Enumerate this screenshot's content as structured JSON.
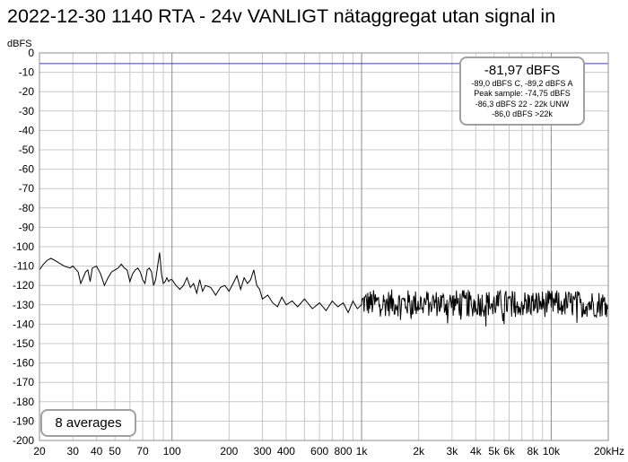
{
  "title": "2022-12-30 1140 RTA - 24v VANLIGT nätaggregat utan signal in",
  "colors": {
    "trace": "#000000",
    "reference_line": "#3a3ac8",
    "grid": "#c8c8c8",
    "grid_major": "#8c8c8c",
    "box_border": "#a0a0a0"
  },
  "readout": {
    "main": "-81,97 dBFS",
    "lines": [
      "-89,0 dBFS C, -89,2 dBFS A",
      "Peak sample: -74,75 dBFS",
      "-86,3 dBFS 22 - 22k UNW",
      "-86,0 dBFS >22k"
    ]
  },
  "averages_label": "8 averages",
  "chart_data": {
    "type": "line",
    "title": "2022-12-30 1140 RTA - 24v VANLIGT nätaggregat utan signal in",
    "ylabel": "dBFS",
    "xlabel": "",
    "x_scale": "log",
    "xlim": [
      20,
      20000
    ],
    "ylim": [
      -200,
      0
    ],
    "grid": true,
    "y_ticks": [
      "0",
      "-10",
      "-20",
      "-30",
      "-40",
      "-50",
      "-60",
      "-70",
      "-80",
      "-90",
      "-100",
      "-110",
      "-120",
      "-130",
      "-140",
      "-150",
      "-160",
      "-170",
      "-180",
      "-190",
      "-200"
    ],
    "x_ticks": [
      {
        "v": 20,
        "label": "20"
      },
      {
        "v": 30,
        "label": "30"
      },
      {
        "v": 40,
        "label": "40"
      },
      {
        "v": 50,
        "label": "50"
      },
      {
        "v": 70,
        "label": "70"
      },
      {
        "v": 100,
        "label": "100"
      },
      {
        "v": 200,
        "label": "200"
      },
      {
        "v": 300,
        "label": "300"
      },
      {
        "v": 400,
        "label": "400"
      },
      {
        "v": 600,
        "label": "600"
      },
      {
        "v": 800,
        "label": "800"
      },
      {
        "v": 1000,
        "label": "1k"
      },
      {
        "v": 2000,
        "label": "2k"
      },
      {
        "v": 3000,
        "label": "3k"
      },
      {
        "v": 4000,
        "label": "4k"
      },
      {
        "v": 5000,
        "label": "5k"
      },
      {
        "v": 6000,
        "label": "6k"
      },
      {
        "v": 8000,
        "label": "8k"
      },
      {
        "v": 10000,
        "label": "10k"
      },
      {
        "v": 20000,
        "label": "20kHz"
      }
    ],
    "reference_level": -5.5,
    "series": [
      {
        "x": [
          20,
          21,
          22,
          23,
          24,
          25,
          27,
          29,
          30,
          32,
          33,
          35,
          36,
          37,
          38,
          40,
          42,
          44,
          46,
          48,
          50,
          52,
          54,
          56,
          58,
          60,
          62,
          64,
          66,
          68,
          70,
          72,
          74,
          76,
          78,
          80,
          82,
          84,
          86,
          88,
          90,
          92,
          94,
          96,
          98,
          100,
          105,
          110,
          115,
          120,
          125,
          130,
          135,
          140,
          145,
          150,
          160,
          170,
          180,
          190,
          200,
          210,
          220,
          230,
          240,
          250,
          260,
          270,
          280,
          290,
          300,
          320,
          340,
          360,
          380,
          400,
          430,
          460,
          500,
          550,
          600,
          650,
          700,
          750,
          800,
          850,
          900,
          950,
          1000
        ],
        "y": [
          -112,
          -109,
          -107,
          -106,
          -107,
          -108,
          -110,
          -111,
          -110,
          -113,
          -119,
          -113,
          -112,
          -118,
          -111,
          -110,
          -114,
          -120,
          -116,
          -113,
          -112,
          -111,
          -109,
          -111,
          -112,
          -118,
          -114,
          -112,
          -111,
          -113,
          -117,
          -119,
          -112,
          -111,
          -113,
          -120,
          -117,
          -110,
          -103,
          -114,
          -119,
          -118,
          -116,
          -118,
          -117,
          -117,
          -120,
          -122,
          -120,
          -116,
          -121,
          -119,
          -124,
          -117,
          -123,
          -120,
          -121,
          -125,
          -121,
          -120,
          -123,
          -119,
          -115,
          -122,
          -116,
          -119,
          -117,
          -112,
          -120,
          -122,
          -127,
          -125,
          -129,
          -131,
          -126,
          -130,
          -128,
          -131,
          -127,
          -132,
          -129,
          -133,
          -128,
          -131,
          -129,
          -134,
          -128,
          -132,
          -130
        ]
      }
    ]
  }
}
